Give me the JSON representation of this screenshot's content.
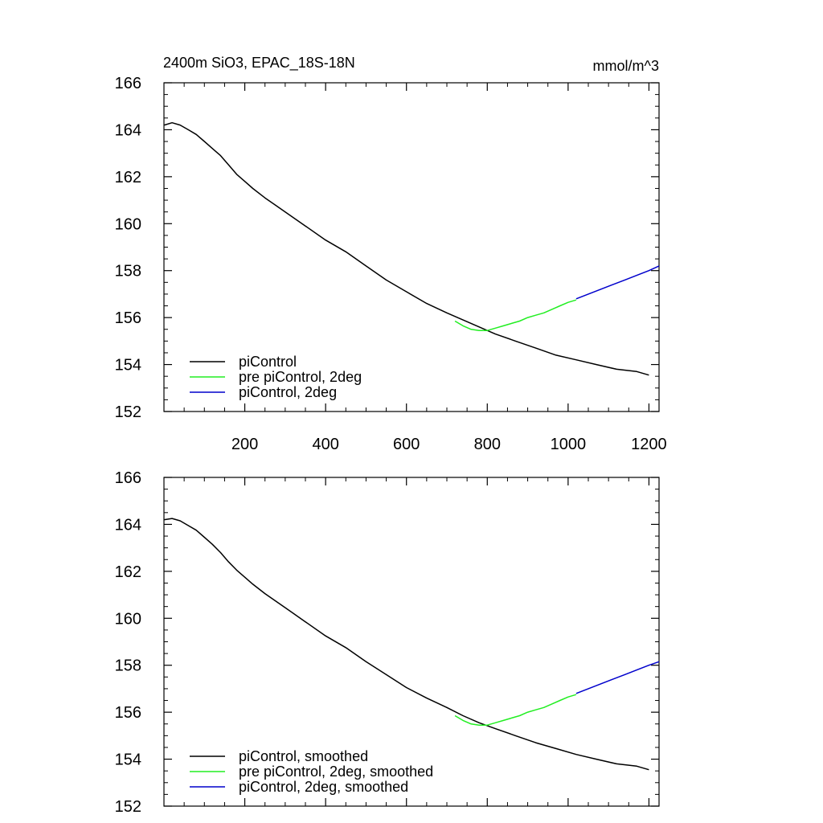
{
  "header": {
    "title": "2400m SiO3, EPAC_18S-18N",
    "units": "mmol/m^3"
  },
  "colors": {
    "pi": "#000000",
    "pre": "#22ee22",
    "pi2": "#0000cc"
  },
  "chart_data": [
    {
      "type": "line",
      "title": "2400m SiO3, EPAC_18S-18N",
      "units": "mmol/m^3",
      "xlim": [
        0,
        1225
      ],
      "ylim": [
        152,
        166
      ],
      "x_ticks": [
        200,
        400,
        600,
        800,
        1000,
        1200
      ],
      "x_tick_labels": [
        "200",
        "400",
        "600",
        "800",
        "1000",
        "1200"
      ],
      "y_ticks": [
        152,
        154,
        156,
        158,
        160,
        162,
        164,
        166
      ],
      "y_tick_labels": [
        "152",
        "154",
        "156",
        "158",
        "160",
        "162",
        "164",
        "166"
      ],
      "legend_position": "bottom-left",
      "series": [
        {
          "name": "piControl",
          "color": "#000000",
          "points": [
            [
              1,
              164.2
            ],
            [
              20,
              164.3
            ],
            [
              40,
              164.2
            ],
            [
              60,
              164.0
            ],
            [
              80,
              163.8
            ],
            [
              100,
              163.5
            ],
            [
              120,
              163.2
            ],
            [
              140,
              162.9
            ],
            [
              160,
              162.5
            ],
            [
              180,
              162.1
            ],
            [
              200,
              161.8
            ],
            [
              220,
              161.5
            ],
            [
              250,
              161.1
            ],
            [
              300,
              160.5
            ],
            [
              350,
              159.9
            ],
            [
              400,
              159.3
            ],
            [
              450,
              158.8
            ],
            [
              500,
              158.2
            ],
            [
              550,
              157.6
            ],
            [
              600,
              157.1
            ],
            [
              650,
              156.6
            ],
            [
              700,
              156.2
            ],
            [
              740,
              155.9
            ],
            [
              780,
              155.6
            ],
            [
              820,
              155.3
            ],
            [
              870,
              155.0
            ],
            [
              920,
              154.7
            ],
            [
              970,
              154.4
            ],
            [
              1020,
              154.2
            ],
            [
              1070,
              154.0
            ],
            [
              1120,
              153.8
            ],
            [
              1170,
              153.7
            ],
            [
              1200,
              153.55
            ]
          ]
        },
        {
          "name": "pre piControl, 2deg",
          "color": "#22ee22",
          "points": [
            [
              720,
              155.85
            ],
            [
              740,
              155.65
            ],
            [
              760,
              155.5
            ],
            [
              780,
              155.45
            ],
            [
              800,
              155.45
            ],
            [
              820,
              155.55
            ],
            [
              840,
              155.65
            ],
            [
              860,
              155.75
            ],
            [
              880,
              155.85
            ],
            [
              900,
              156.0
            ],
            [
              920,
              156.1
            ],
            [
              940,
              156.2
            ],
            [
              960,
              156.35
            ],
            [
              980,
              156.5
            ],
            [
              1000,
              156.65
            ],
            [
              1020,
              156.75
            ]
          ]
        },
        {
          "name": "piControl, 2deg",
          "color": "#0000cc",
          "points": [
            [
              1020,
              156.8
            ],
            [
              1050,
              157.0
            ],
            [
              1080,
              157.2
            ],
            [
              1110,
              157.4
            ],
            [
              1140,
              157.6
            ],
            [
              1170,
              157.8
            ],
            [
              1200,
              158.0
            ],
            [
              1225,
              158.2
            ]
          ]
        }
      ]
    },
    {
      "type": "line",
      "xlim": [
        0,
        1225
      ],
      "ylim": [
        152,
        166
      ],
      "x_ticks": [
        200,
        400,
        600,
        800,
        1000,
        1200
      ],
      "y_ticks": [
        152,
        154,
        156,
        158,
        160,
        162,
        164,
        166
      ],
      "y_tick_labels": [
        "152",
        "154",
        "156",
        "158",
        "160",
        "162",
        "164",
        "166"
      ],
      "legend_position": "bottom-left",
      "series": [
        {
          "name": "piControl, smoothed",
          "color": "#000000",
          "points": [
            [
              1,
              164.2
            ],
            [
              20,
              164.25
            ],
            [
              40,
              164.15
            ],
            [
              60,
              163.95
            ],
            [
              80,
              163.75
            ],
            [
              100,
              163.45
            ],
            [
              120,
              163.15
            ],
            [
              140,
              162.8
            ],
            [
              160,
              162.4
            ],
            [
              180,
              162.05
            ],
            [
              200,
              161.75
            ],
            [
              220,
              161.45
            ],
            [
              250,
              161.05
            ],
            [
              300,
              160.45
            ],
            [
              350,
              159.85
            ],
            [
              400,
              159.25
            ],
            [
              450,
              158.75
            ],
            [
              500,
              158.15
            ],
            [
              550,
              157.6
            ],
            [
              600,
              157.05
            ],
            [
              650,
              156.6
            ],
            [
              700,
              156.2
            ],
            [
              740,
              155.85
            ],
            [
              780,
              155.55
            ],
            [
              820,
              155.3
            ],
            [
              870,
              155.0
            ],
            [
              920,
              154.7
            ],
            [
              970,
              154.45
            ],
            [
              1020,
              154.2
            ],
            [
              1070,
              154.0
            ],
            [
              1120,
              153.8
            ],
            [
              1170,
              153.7
            ],
            [
              1200,
              153.55
            ]
          ]
        },
        {
          "name": "pre piControl, 2deg, smoothed",
          "color": "#22ee22",
          "points": [
            [
              720,
              155.85
            ],
            [
              740,
              155.65
            ],
            [
              760,
              155.5
            ],
            [
              780,
              155.45
            ],
            [
              800,
              155.45
            ],
            [
              820,
              155.55
            ],
            [
              840,
              155.65
            ],
            [
              860,
              155.75
            ],
            [
              880,
              155.85
            ],
            [
              900,
              156.0
            ],
            [
              920,
              156.1
            ],
            [
              940,
              156.2
            ],
            [
              960,
              156.35
            ],
            [
              980,
              156.5
            ],
            [
              1000,
              156.65
            ],
            [
              1020,
              156.75
            ]
          ]
        },
        {
          "name": "piControl, 2deg, smoothed",
          "color": "#0000cc",
          "points": [
            [
              1020,
              156.8
            ],
            [
              1050,
              157.0
            ],
            [
              1080,
              157.2
            ],
            [
              1110,
              157.4
            ],
            [
              1140,
              157.6
            ],
            [
              1170,
              157.8
            ],
            [
              1200,
              158.0
            ],
            [
              1225,
              158.15
            ]
          ]
        }
      ]
    }
  ]
}
